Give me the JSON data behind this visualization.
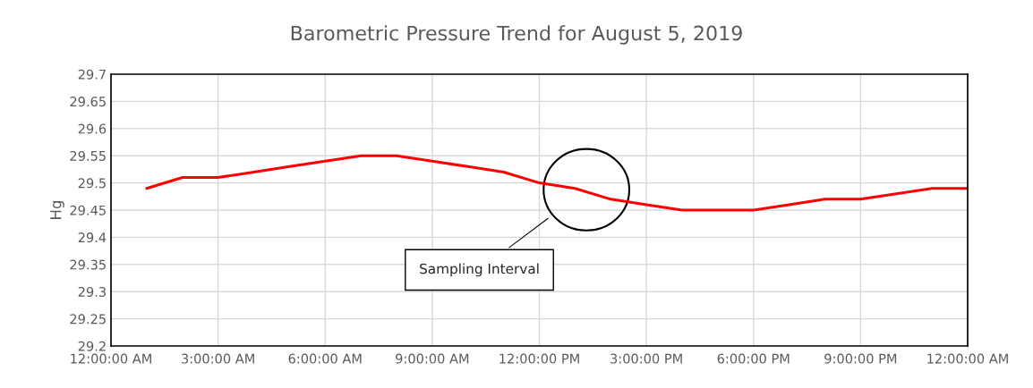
{
  "chart_data": {
    "type": "line",
    "title": "Barometric Pressure Trend for August 5, 2019",
    "ylabel": "Hg",
    "x": [
      "2019-08-05T01:00",
      "2019-08-05T02:00",
      "2019-08-05T03:00",
      "2019-08-05T04:00",
      "2019-08-05T05:00",
      "2019-08-05T06:00",
      "2019-08-05T07:00",
      "2019-08-05T08:00",
      "2019-08-05T09:00",
      "2019-08-05T10:00",
      "2019-08-05T11:00",
      "2019-08-05T12:00",
      "2019-08-05T13:00",
      "2019-08-05T14:00",
      "2019-08-05T15:00",
      "2019-08-05T16:00",
      "2019-08-05T17:00",
      "2019-08-05T18:00",
      "2019-08-05T19:00",
      "2019-08-05T20:00",
      "2019-08-05T21:00",
      "2019-08-05T22:00",
      "2019-08-05T23:00",
      "2019-08-06T00:00"
    ],
    "series": [
      {
        "color": "#ff0000",
        "values": [
          29.49,
          29.51,
          29.51,
          29.52,
          29.53,
          29.54,
          29.55,
          29.55,
          29.54,
          29.53,
          29.52,
          29.5,
          29.49,
          29.47,
          29.46,
          29.45,
          29.45,
          29.45,
          29.46,
          29.47,
          29.47,
          29.48,
          29.49,
          29.49
        ]
      }
    ],
    "xlim": [
      "2019-08-05T00:00",
      "2019-08-06T00:00"
    ],
    "xticks": [
      {
        "value": "2019-08-05T00:00",
        "label": "12:00:00 AM"
      },
      {
        "value": "2019-08-05T03:00",
        "label": "3:00:00 AM"
      },
      {
        "value": "2019-08-05T06:00",
        "label": "6:00:00 AM"
      },
      {
        "value": "2019-08-05T09:00",
        "label": "9:00:00 AM"
      },
      {
        "value": "2019-08-05T12:00",
        "label": "12:00:00 PM"
      },
      {
        "value": "2019-08-05T15:00",
        "label": "3:00:00 PM"
      },
      {
        "value": "2019-08-05T18:00",
        "label": "6:00:00 PM"
      },
      {
        "value": "2019-08-05T21:00",
        "label": "9:00:00 PM"
      },
      {
        "value": "2019-08-06T00:00",
        "label": "12:00:00 AM"
      }
    ],
    "ylim": [
      29.2,
      29.7
    ],
    "yticks": [
      29.2,
      29.25,
      29.3,
      29.35,
      29.4,
      29.45,
      29.5,
      29.55,
      29.6,
      29.65,
      29.7
    ],
    "grid": true,
    "marker": "none",
    "line_style": "solid",
    "annotations": [
      "Sampling Interval"
    ]
  }
}
